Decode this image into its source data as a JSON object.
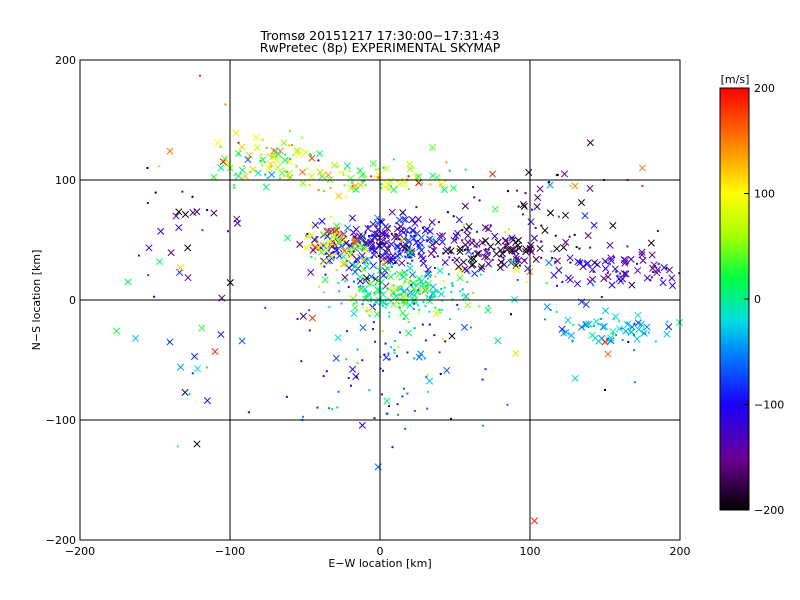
{
  "chart_data": {
    "type": "scatter",
    "title": "Tromsø 20151217 17:30:00−17:31:43",
    "subtitle": "RwPretec (8p) EXPERIMENTAL SKYMAP",
    "xlabel": "E−W location [km]",
    "ylabel": "N−S location [km]",
    "xlim": [
      -200,
      200
    ],
    "ylim": [
      -200,
      200
    ],
    "x_ticks": [
      -200,
      -100,
      0,
      100,
      200
    ],
    "y_ticks": [
      -200,
      -100,
      0,
      100,
      200
    ],
    "x_tick_labels": [
      "−200",
      "−100",
      "0",
      "100",
      "200"
    ],
    "y_tick_labels": [
      "−200",
      "−100",
      "0",
      "100",
      "200"
    ],
    "grid": true,
    "colorbar": {
      "label": "[m/s]",
      "range": [
        -200,
        200
      ],
      "ticks": [
        200,
        100,
        0,
        -100,
        -200
      ],
      "tick_labels": [
        "200",
        "100",
        "0",
        "−100",
        "−200"
      ],
      "colormap": "rainbow"
    },
    "markers": [
      "x",
      "dot"
    ],
    "clusters": [
      {
        "cx": 0,
        "cy": 45,
        "sx": 25,
        "sy": 12,
        "n": 300,
        "vmean": -110,
        "vsd": 35,
        "xfrac": 0.55
      },
      {
        "cx": 15,
        "cy": 8,
        "sx": 20,
        "sy": 10,
        "n": 220,
        "vmean": 5,
        "vsd": 45,
        "xfrac": 0.35
      },
      {
        "cx": 0,
        "cy": 100,
        "sx": 25,
        "sy": 6,
        "n": 80,
        "vmean": 80,
        "vsd": 60,
        "xfrac": 0.4
      },
      {
        "cx": -70,
        "cy": 115,
        "sx": 20,
        "sy": 12,
        "n": 90,
        "vmean": 70,
        "vsd": 60,
        "xfrac": 0.5
      },
      {
        "cx": 80,
        "cy": 40,
        "sx": 25,
        "sy": 8,
        "n": 100,
        "vmean": -170,
        "vsd": 35,
        "xfrac": 0.6
      },
      {
        "cx": 160,
        "cy": 25,
        "sx": 25,
        "sy": 8,
        "n": 80,
        "vmean": -125,
        "vsd": 25,
        "xfrac": 0.7
      },
      {
        "cx": 165,
        "cy": -25,
        "sx": 25,
        "sy": 8,
        "n": 70,
        "vmean": -35,
        "vsd": 30,
        "xfrac": 0.7
      },
      {
        "cx": 100,
        "cy": 70,
        "sx": 40,
        "sy": 20,
        "n": 60,
        "vmean": -150,
        "vsd": 45,
        "xfrac": 0.5
      },
      {
        "cx": -30,
        "cy": 45,
        "sx": 10,
        "sy": 10,
        "n": 60,
        "vmean": 80,
        "vsd": 50,
        "xfrac": 0.6
      },
      {
        "cx": 10,
        "cy": -55,
        "sx": 35,
        "sy": 30,
        "n": 90,
        "vmean": -70,
        "vsd": 55,
        "xfrac": 0.15
      },
      {
        "cx": -130,
        "cy": 60,
        "sx": 25,
        "sy": 30,
        "n": 25,
        "vmean": -130,
        "vsd": 55,
        "xfrac": 0.4
      },
      {
        "cx": -130,
        "cy": -40,
        "sx": 25,
        "sy": 30,
        "n": 10,
        "vmean": -40,
        "vsd": 60,
        "xfrac": 0.6
      },
      {
        "cx": 60,
        "cy": 0,
        "sx": 60,
        "sy": 40,
        "n": 60,
        "vmean": -20,
        "vsd": 90,
        "xfrac": 0.3
      }
    ],
    "points": [
      {
        "x": -120,
        "y": 187,
        "v": 185,
        "m": "dot"
      },
      {
        "x": -103,
        "y": 163,
        "v": 150,
        "m": "dot"
      },
      {
        "x": -96,
        "y": 139,
        "v": 110,
        "m": "x"
      },
      {
        "x": -108,
        "y": 131,
        "v": 100,
        "m": "x"
      },
      {
        "x": -155,
        "y": 110,
        "v": -200,
        "m": "dot"
      },
      {
        "x": -122,
        "y": -120,
        "v": -200,
        "m": "x"
      },
      {
        "x": -130,
        "y": -77,
        "v": -180,
        "m": "x"
      },
      {
        "x": -110,
        "y": -43,
        "v": 185,
        "m": "x"
      },
      {
        "x": -140,
        "y": -35,
        "v": -80,
        "m": "x"
      },
      {
        "x": -163,
        "y": -32,
        "v": -30,
        "m": "x"
      },
      {
        "x": -133,
        "y": -56,
        "v": -40,
        "m": "x"
      },
      {
        "x": -168,
        "y": 15,
        "v": 20,
        "m": "x"
      },
      {
        "x": -147,
        "y": 32,
        "v": 20,
        "m": "x"
      },
      {
        "x": -133,
        "y": 27,
        "v": 120,
        "m": "x"
      },
      {
        "x": -140,
        "y": 124,
        "v": 150,
        "m": "x"
      },
      {
        "x": -125,
        "y": 86,
        "v": -200,
        "m": "dot"
      },
      {
        "x": -95,
        "y": 64,
        "v": -120,
        "m": "x"
      },
      {
        "x": -88,
        "y": 117,
        "v": -70,
        "m": "x"
      },
      {
        "x": 103,
        "y": -184,
        "v": 185,
        "m": "x"
      },
      {
        "x": 75,
        "y": 105,
        "v": 185,
        "m": "x"
      },
      {
        "x": 130,
        "y": 95,
        "v": 150,
        "m": "x"
      },
      {
        "x": 175,
        "y": 110,
        "v": 150,
        "m": "x"
      },
      {
        "x": 150,
        "y": -35,
        "v": 190,
        "m": "x"
      },
      {
        "x": 152,
        "y": -45,
        "v": 160,
        "m": "x"
      },
      {
        "x": 165,
        "y": 100,
        "v": 185,
        "m": "dot"
      },
      {
        "x": 175,
        "y": 95,
        "v": 185,
        "m": "dot"
      },
      {
        "x": 150,
        "y": -75,
        "v": -200,
        "m": "dot"
      },
      {
        "x": 35,
        "y": 127,
        "v": 40,
        "m": "x"
      },
      {
        "x": 48,
        "y": -30,
        "v": -200,
        "m": "x"
      },
      {
        "x": -45,
        "y": -15,
        "v": 185,
        "m": "x"
      },
      {
        "x": 110,
        "y": 58,
        "v": -200,
        "m": "x"
      },
      {
        "x": 140,
        "y": 93,
        "v": -140,
        "m": "x"
      },
      {
        "x": 195,
        "y": 12,
        "v": -110,
        "m": "x"
      },
      {
        "x": 193,
        "y": 25,
        "v": -160,
        "m": "x"
      }
    ]
  }
}
